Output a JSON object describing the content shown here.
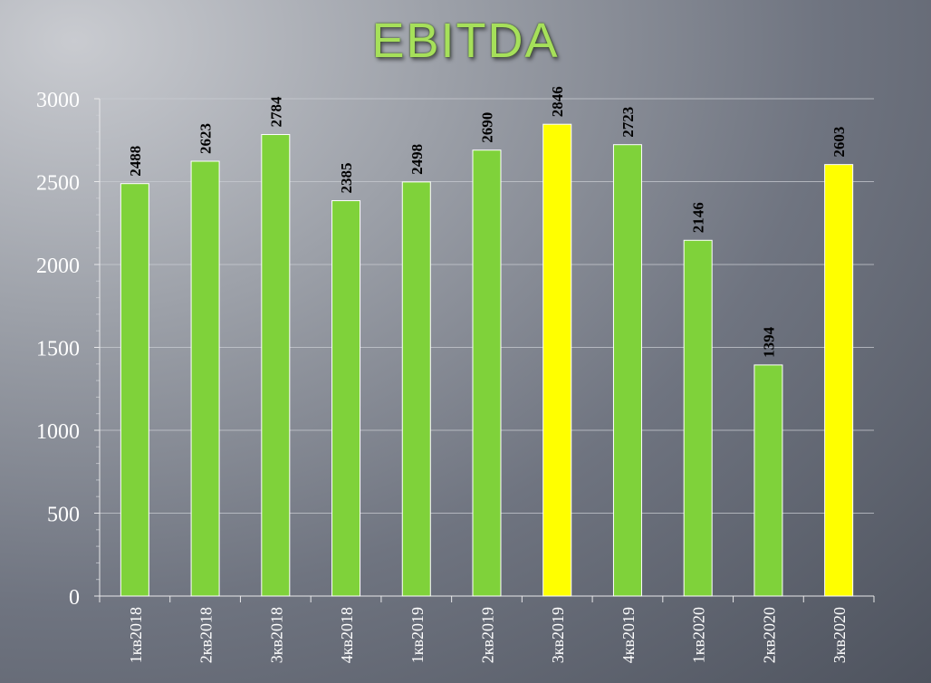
{
  "colors": {
    "bar": "#7fd23a",
    "highlight": "#ffff00",
    "title": "#a6e05a"
  },
  "chart_data": {
    "type": "bar",
    "title": "EBITDA",
    "categories": [
      "1кв2018",
      "2кв2018",
      "3кв2018",
      "4кв2018",
      "1кв2019",
      "2кв2019",
      "3кв2019",
      "4кв2019",
      "1кв2020",
      "2кв2020",
      "3кв2020"
    ],
    "values": [
      2488,
      2623,
      2784,
      2385,
      2498,
      2690,
      2846,
      2723,
      2146,
      1394,
      2603
    ],
    "data_labels": [
      "2488",
      "2623",
      "2784",
      "2385",
      "2498",
      "2690",
      "2846",
      "2723",
      "2146",
      "1394",
      "2603"
    ],
    "highlighted_categories": [
      "3кв2019",
      "3кв2020"
    ],
    "ylim": [
      0,
      3000
    ],
    "yticks": [
      0,
      500,
      1000,
      1500,
      2000,
      2500,
      3000
    ],
    "ytick_labels": [
      "0",
      "500",
      "1000",
      "1500",
      "2000",
      "2500",
      "3000"
    ],
    "grid": true,
    "legend": "none",
    "xlabel": "",
    "ylabel": ""
  }
}
